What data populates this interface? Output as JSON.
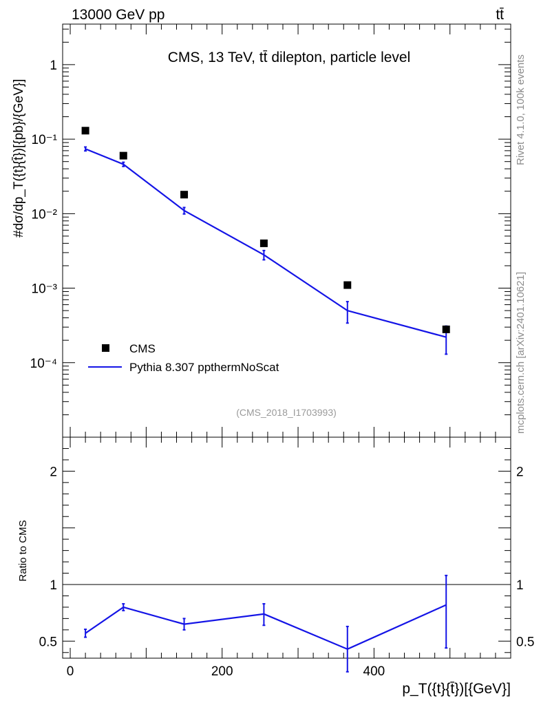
{
  "header": {
    "left": "13000 GeV pp",
    "right": "tt̄"
  },
  "side": {
    "rivet": "Rivet 4.1.0,  100k events",
    "source": "mcplots.cern.ch [arXiv:2401.10621]"
  },
  "colors": {
    "data": "#000000",
    "mc": "#1414e6",
    "reference": "#000000"
  },
  "chart_data": [
    {
      "type": "scatter",
      "panel": "main",
      "title": "CMS, 13 TeV, tt̄ dilepton, particle level",
      "analysis_id": "(CMS_2018_I1703993)",
      "ylabel": "#dσ/dp_T({t}{t̄})[{pb}/{GeV}]",
      "yscale": "log",
      "ylim": [
        1e-05,
        3.5
      ],
      "xlim": [
        -10,
        580
      ],
      "yticks": [
        0.0001,
        0.001,
        0.01,
        0.1,
        1
      ],
      "ytick_labels": [
        "10⁻⁴",
        "10⁻³",
        "10⁻²",
        "10⁻¹",
        "1"
      ],
      "legend_position": "bottom-left",
      "series": [
        {
          "name": "CMS",
          "style": "markers",
          "x": [
            20,
            70,
            150,
            255,
            365,
            495
          ],
          "values": [
            0.13,
            0.06,
            0.018,
            0.004,
            0.0011,
            0.00028
          ]
        },
        {
          "name": "Pythia 8.307 ppthermNoScat",
          "style": "line",
          "x": [
            20,
            70,
            150,
            255,
            365,
            495
          ],
          "values": [
            0.074,
            0.046,
            0.011,
            0.0028,
            0.0005,
            0.00022
          ],
          "err_low": [
            0.0045,
            0.003,
            0.0011,
            0.0004,
            0.00016,
            9e-05
          ],
          "err_high": [
            0.0045,
            0.003,
            0.0011,
            0.0004,
            0.00016,
            9e-05
          ]
        }
      ]
    },
    {
      "type": "line",
      "panel": "ratio",
      "ylabel": "Ratio to CMS",
      "xlabel": "p_T({t}{t̄})[{GeV}]",
      "ylim": [
        0.35,
        2.3
      ],
      "xlim": [
        -10,
        580
      ],
      "yticks": [
        0.5,
        1,
        2
      ],
      "ytick_labels": [
        "0.5",
        "1",
        "2"
      ],
      "xticks": [
        0,
        200,
        400
      ],
      "xtick_labels": [
        "0",
        "200",
        "400"
      ],
      "reference": 1,
      "series": [
        {
          "name": "Pythia 8.307 ppthermNoScat",
          "x": [
            20,
            70,
            150,
            255,
            365,
            495
          ],
          "values": [
            0.57,
            0.8,
            0.65,
            0.74,
            0.43,
            0.82
          ],
          "err_low": [
            0.035,
            0.03,
            0.05,
            0.1,
            0.2,
            0.38
          ],
          "err_high": [
            0.035,
            0.03,
            0.05,
            0.09,
            0.2,
            0.26
          ]
        }
      ]
    }
  ]
}
